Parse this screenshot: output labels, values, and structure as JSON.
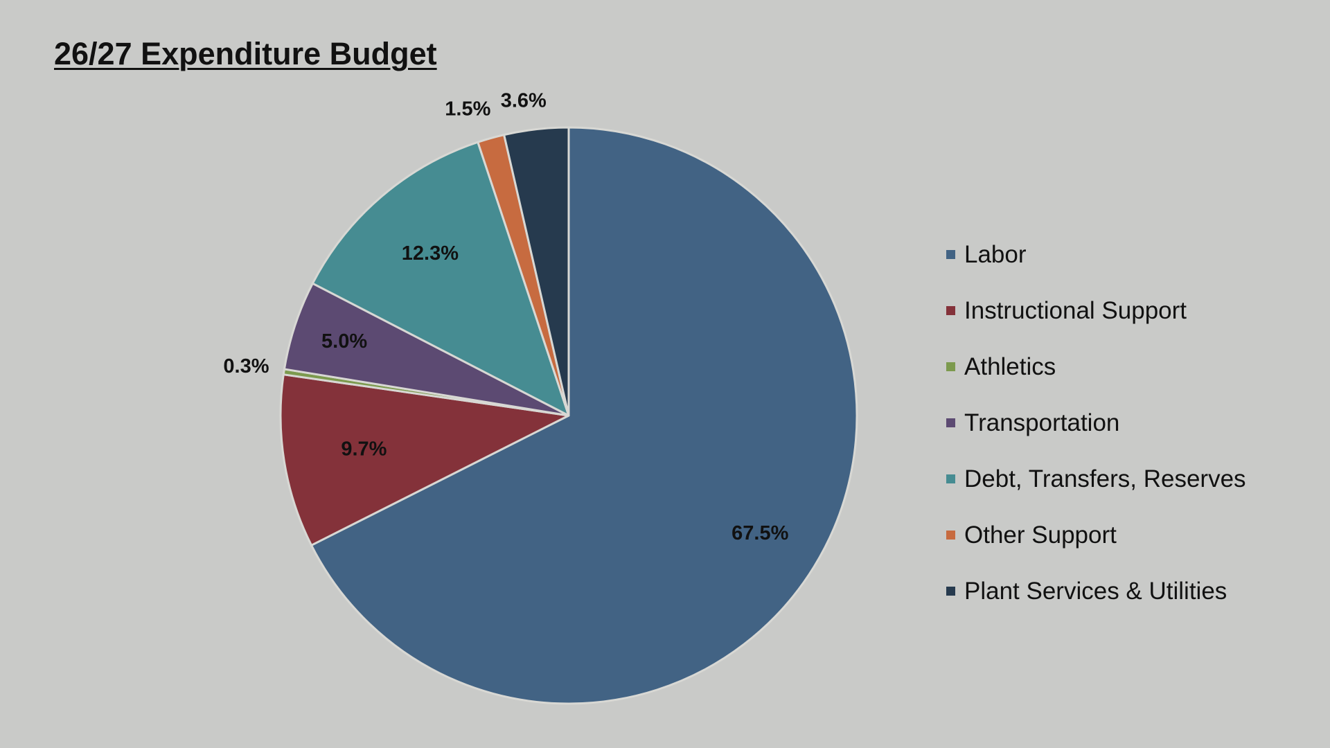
{
  "slide": {
    "title": "26/27 Expenditure Budget"
  },
  "chart_data": {
    "type": "pie",
    "title": "",
    "start_angle_deg": 0,
    "direction": "clockwise",
    "legend_position": "right",
    "slices": [
      {
        "label": "Labor",
        "value": 67.5,
        "display": "67.5%",
        "color": "#426384"
      },
      {
        "label": "Instructional Support",
        "value": 9.7,
        "display": "9.7%",
        "color": "#84323a"
      },
      {
        "label": "Athletics",
        "value": 0.3,
        "display": "0.3%",
        "color": "#7c9a4e"
      },
      {
        "label": "Transportation",
        "value": 5.0,
        "display": "5.0%",
        "color": "#5c4a72"
      },
      {
        "label": "Debt, Transfers, Reserves",
        "value": 12.3,
        "display": "12.3%",
        "color": "#468c92"
      },
      {
        "label": "Other Support",
        "value": 1.5,
        "display": "1.5%",
        "color": "#c76b40"
      },
      {
        "label": "Plant Services & Utilities",
        "value": 3.6,
        "display": "3.6%",
        "color": "#263a4e"
      }
    ]
  }
}
